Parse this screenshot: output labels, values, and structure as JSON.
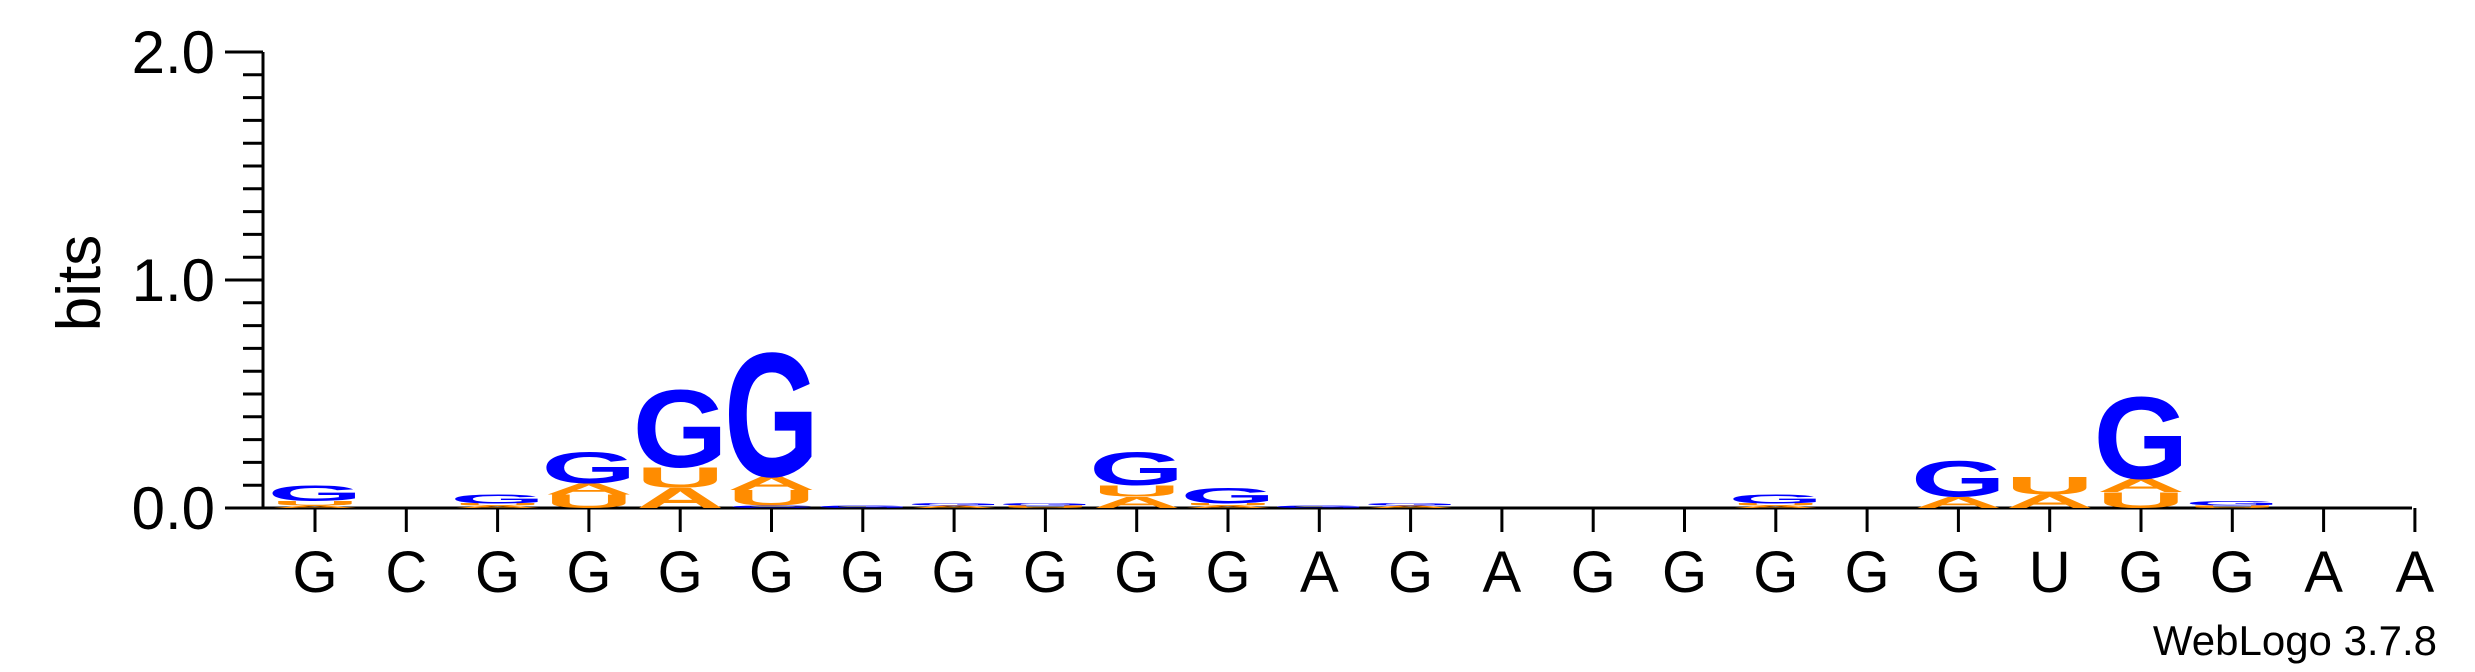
{
  "chart_data": {
    "type": "sequence-logo",
    "ylabel": "bits",
    "ylim": [
      0,
      2.0
    ],
    "yticks": [
      "0.0",
      "1.0",
      "2.0"
    ],
    "colors": {
      "A": "#ff8c00",
      "U": "#ff8c00",
      "G": "#0000ff",
      "C": "#0000ff"
    },
    "sequence": [
      "G",
      "C",
      "G",
      "G",
      "G",
      "G",
      "G",
      "G",
      "G",
      "G",
      "G",
      "A",
      "G",
      "A",
      "G",
      "G",
      "G",
      "G",
      "G",
      "U",
      "G",
      "G",
      "A",
      "A"
    ],
    "stacks": [
      [
        {
          "l": "A",
          "h": 0.01
        },
        {
          "l": "U",
          "h": 0.02
        },
        {
          "l": "G",
          "h": 0.07
        }
      ],
      [],
      [
        {
          "l": "A",
          "h": 0.01
        },
        {
          "l": "U",
          "h": 0.01
        },
        {
          "l": "G",
          "h": 0.04
        }
      ],
      [
        {
          "l": "U",
          "h": 0.06
        },
        {
          "l": "A",
          "h": 0.05
        },
        {
          "l": "G",
          "h": 0.14
        }
      ],
      [
        {
          "l": "A",
          "h": 0.09
        },
        {
          "l": "U",
          "h": 0.09
        },
        {
          "l": "G",
          "h": 0.35
        }
      ],
      [
        {
          "l": "C",
          "h": 0.01
        },
        {
          "l": "U",
          "h": 0.07
        },
        {
          "l": "A",
          "h": 0.06
        },
        {
          "l": "G",
          "h": 0.56
        }
      ],
      [
        {
          "l": "G",
          "h": 0.01
        }
      ],
      [
        {
          "l": "A",
          "h": 0.01
        },
        {
          "l": "G",
          "h": 0.01
        }
      ],
      [
        {
          "l": "U",
          "h": 0.01
        },
        {
          "l": "G",
          "h": 0.01
        }
      ],
      [
        {
          "l": "A",
          "h": 0.05
        },
        {
          "l": "U",
          "h": 0.05
        },
        {
          "l": "G",
          "h": 0.15
        }
      ],
      [
        {
          "l": "A",
          "h": 0.01
        },
        {
          "l": "U",
          "h": 0.01
        },
        {
          "l": "G",
          "h": 0.07
        }
      ],
      [
        {
          "l": "G",
          "h": 0.01
        }
      ],
      [
        {
          "l": "A",
          "h": 0.01
        },
        {
          "l": "G",
          "h": 0.01
        }
      ],
      [],
      [],
      [],
      [
        {
          "l": "A",
          "h": 0.01
        },
        {
          "l": "U",
          "h": 0.01
        },
        {
          "l": "G",
          "h": 0.04
        }
      ],
      [],
      [
        {
          "l": "A",
          "h": 0.05
        },
        {
          "l": "G",
          "h": 0.16
        }
      ],
      [
        {
          "l": "A",
          "h": 0.06
        },
        {
          "l": "U",
          "h": 0.08
        }
      ],
      [
        {
          "l": "U",
          "h": 0.07
        },
        {
          "l": "A",
          "h": 0.06
        },
        {
          "l": "G",
          "h": 0.37
        }
      ],
      [
        {
          "l": "U",
          "h": 0.01
        },
        {
          "l": "G",
          "h": 0.02
        }
      ],
      [],
      []
    ]
  },
  "credit": "WebLogo 3.7.8"
}
